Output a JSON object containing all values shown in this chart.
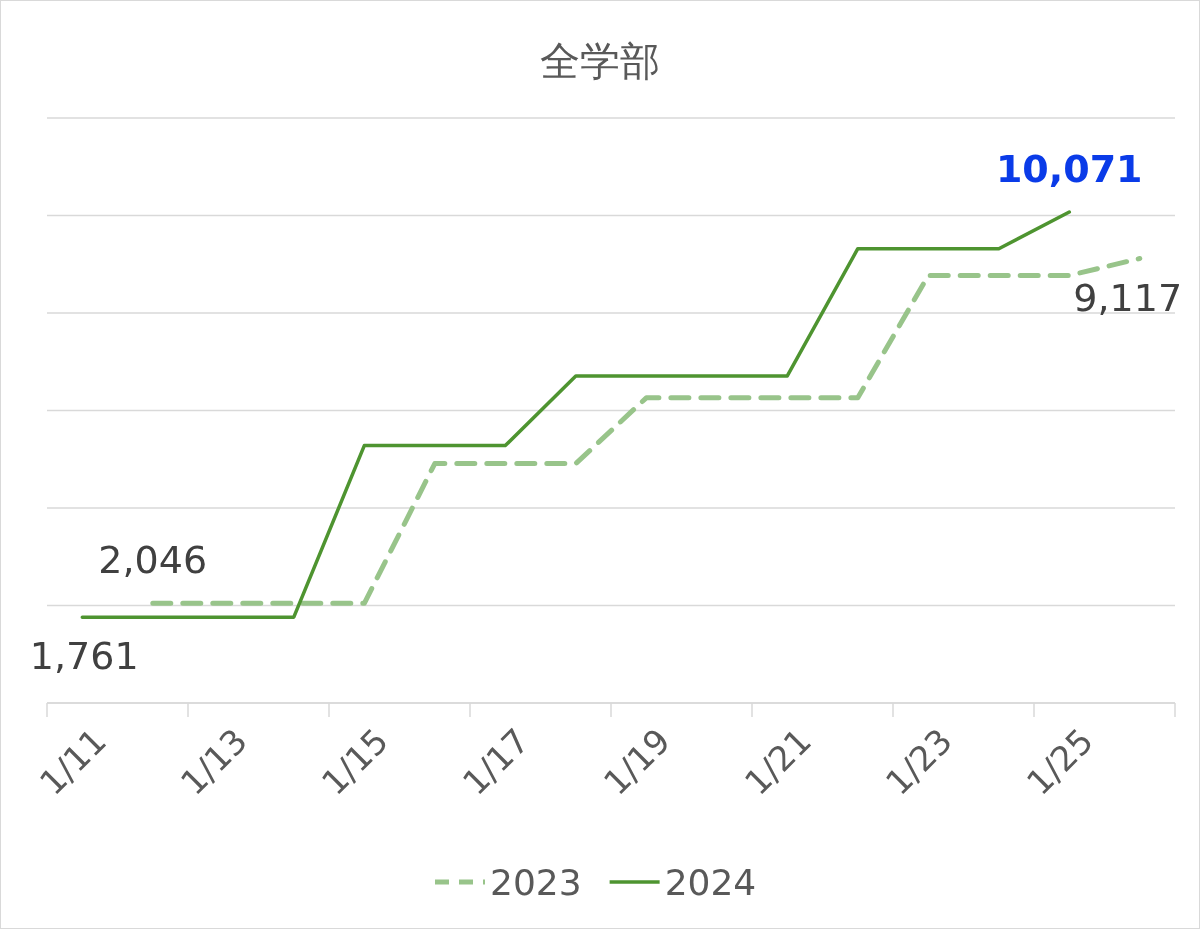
{
  "chart_data": {
    "type": "line",
    "title": "全学部",
    "categories": [
      "1/11",
      null,
      "1/13",
      null,
      "1/15",
      null,
      "1/17",
      null,
      "1/19",
      null,
      "1/21",
      null,
      "1/23",
      null,
      "1/25",
      null
    ],
    "series": [
      {
        "name": "2023",
        "color": "#98c48a",
        "line_style": "dashed",
        "values": [
          null,
          2046,
          2046,
          2046,
          2046,
          4910,
          4910,
          4910,
          6260,
          6260,
          6260,
          6260,
          8770,
          8770,
          8770,
          9117
        ],
        "value_labels": [
          null,
          "2,046",
          null,
          null,
          null,
          null,
          null,
          null,
          null,
          null,
          null,
          null,
          null,
          null,
          null,
          "9,117"
        ]
      },
      {
        "name": "2024",
        "color": "#4e9430",
        "line_style": "solid",
        "values": [
          1761,
          1761,
          1761,
          1761,
          5280,
          5280,
          5280,
          6710,
          6710,
          6710,
          6710,
          9320,
          9320,
          9320,
          10071,
          null
        ],
        "value_labels": [
          "1,761",
          null,
          null,
          null,
          null,
          null,
          null,
          null,
          null,
          null,
          null,
          null,
          null,
          null,
          "**10,071**",
          null
        ]
      }
    ],
    "ylim": [
      0,
      12000
    ],
    "yticks": [
      {
        "value": 0,
        "label": null
      },
      {
        "value": 2000,
        "label": null
      },
      {
        "value": 4000,
        "label": null
      },
      {
        "value": 6000,
        "label": null
      },
      {
        "value": 8000,
        "label": null
      },
      {
        "value": 10000,
        "label": null
      },
      {
        "value": 12000,
        "label": null
      }
    ],
    "grid": "y",
    "legend": "bottom"
  }
}
